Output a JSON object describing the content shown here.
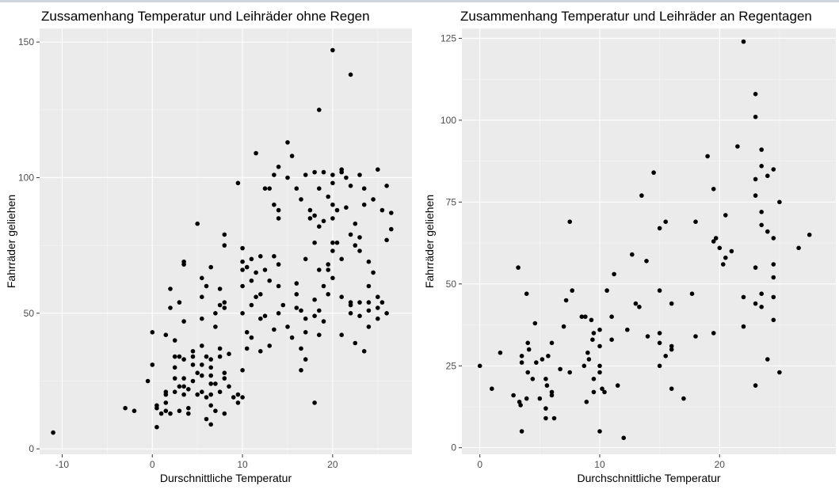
{
  "chart_data": [
    {
      "type": "scatter",
      "title": "Zussamenhang Temperatur und Leihräder ohne Regen",
      "xlabel": "Durschnittliche Temperatur",
      "ylabel": "Fahrräder geliehen",
      "xlim": [
        -12.5,
        28.8
      ],
      "ylim": [
        -2,
        155
      ],
      "x_ticks": [
        -10,
        0,
        10,
        20
      ],
      "y_ticks": [
        0,
        50,
        100,
        150
      ],
      "grid": true,
      "point_color": "#000000",
      "panel_color": "#ebebeb",
      "points": [
        [
          -11,
          6
        ],
        [
          -3,
          15
        ],
        [
          -2,
          14
        ],
        [
          -0.5,
          25
        ],
        [
          0,
          43
        ],
        [
          0,
          31
        ],
        [
          0.5,
          16
        ],
        [
          0.5,
          15
        ],
        [
          0.5,
          8
        ],
        [
          1,
          13
        ],
        [
          1.5,
          42
        ],
        [
          1.5,
          21
        ],
        [
          1.5,
          20
        ],
        [
          1.5,
          17
        ],
        [
          1.5,
          14
        ],
        [
          2,
          52
        ],
        [
          2,
          59
        ],
        [
          2,
          13
        ],
        [
          2.5,
          40
        ],
        [
          2.5,
          34
        ],
        [
          2.5,
          30
        ],
        [
          2.5,
          26
        ],
        [
          2.5,
          21
        ],
        [
          3,
          34
        ],
        [
          3,
          23
        ],
        [
          3,
          14
        ],
        [
          3,
          54
        ],
        [
          3.5,
          68
        ],
        [
          3.5,
          69
        ],
        [
          3.5,
          47
        ],
        [
          3.5,
          33
        ],
        [
          3.5,
          26
        ],
        [
          3.5,
          23
        ],
        [
          3.5,
          20
        ],
        [
          4,
          22
        ],
        [
          4,
          15
        ],
        [
          4,
          13
        ],
        [
          4.5,
          36
        ],
        [
          4.5,
          34
        ],
        [
          4.5,
          31
        ],
        [
          4.5,
          25
        ],
        [
          5,
          83
        ],
        [
          5,
          28
        ],
        [
          5,
          20
        ],
        [
          5.5,
          63
        ],
        [
          5.5,
          56
        ],
        [
          5.5,
          48
        ],
        [
          5.5,
          38
        ],
        [
          5.5,
          31
        ],
        [
          5.5,
          27
        ],
        [
          5.5,
          21
        ],
        [
          6,
          60
        ],
        [
          6,
          19
        ],
        [
          6,
          11
        ],
        [
          6,
          34
        ],
        [
          6.5,
          67
        ],
        [
          6.5,
          33
        ],
        [
          6.5,
          30
        ],
        [
          6.5,
          27
        ],
        [
          6.5,
          24
        ],
        [
          6.5,
          20
        ],
        [
          6.5,
          16
        ],
        [
          6.5,
          9
        ],
        [
          7,
          50
        ],
        [
          7,
          45
        ],
        [
          7,
          24
        ],
        [
          7,
          14
        ],
        [
          7.5,
          59
        ],
        [
          7.5,
          53
        ],
        [
          7.5,
          37
        ],
        [
          7.5,
          34
        ],
        [
          7.5,
          21
        ],
        [
          8,
          79
        ],
        [
          8,
          75
        ],
        [
          8,
          54
        ],
        [
          8,
          52
        ],
        [
          8,
          28
        ],
        [
          8,
          26
        ],
        [
          8,
          13
        ],
        [
          8.5,
          35
        ],
        [
          8.5,
          23
        ],
        [
          9,
          19
        ],
        [
          9.5,
          98
        ],
        [
          9.5,
          20
        ],
        [
          9.5,
          17
        ],
        [
          10,
          74
        ],
        [
          10,
          69
        ],
        [
          10,
          66
        ],
        [
          10,
          60
        ],
        [
          10,
          50
        ],
        [
          10,
          29
        ],
        [
          10,
          19
        ],
        [
          10.5,
          43
        ],
        [
          10.5,
          37
        ],
        [
          10.5,
          67
        ],
        [
          11,
          70
        ],
        [
          11,
          62
        ],
        [
          11,
          53
        ],
        [
          11,
          41
        ],
        [
          11.5,
          109
        ],
        [
          11.5,
          65
        ],
        [
          11.5,
          56
        ],
        [
          12,
          71
        ],
        [
          12,
          57
        ],
        [
          12,
          48
        ],
        [
          12,
          36
        ],
        [
          12.5,
          96
        ],
        [
          12.5,
          66
        ],
        [
          12.5,
          49
        ],
        [
          13,
          96
        ],
        [
          13,
          38
        ],
        [
          13,
          62
        ],
        [
          13.5,
          101
        ],
        [
          13.5,
          90
        ],
        [
          13.5,
          71
        ],
        [
          13.5,
          44
        ],
        [
          14,
          104
        ],
        [
          14,
          88
        ],
        [
          14,
          85
        ],
        [
          14,
          68
        ],
        [
          14,
          60
        ],
        [
          14,
          50
        ],
        [
          14.5,
          53
        ],
        [
          15,
          100
        ],
        [
          15,
          113
        ],
        [
          15,
          45
        ],
        [
          15.5,
          108
        ],
        [
          15.5,
          41
        ],
        [
          16,
          96
        ],
        [
          16,
          61
        ],
        [
          16,
          52
        ],
        [
          16,
          57
        ],
        [
          16.5,
          92
        ],
        [
          16.5,
          51
        ],
        [
          16.5,
          29
        ],
        [
          16.5,
          37
        ],
        [
          17,
          101
        ],
        [
          17,
          70
        ],
        [
          17,
          48
        ],
        [
          17,
          43
        ],
        [
          17,
          33
        ],
        [
          17.5,
          88
        ],
        [
          17.5,
          85
        ],
        [
          18,
          102
        ],
        [
          18,
          86
        ],
        [
          18,
          76
        ],
        [
          18,
          55
        ],
        [
          18,
          49
        ],
        [
          18,
          17
        ],
        [
          18.5,
          125
        ],
        [
          18.5,
          96
        ],
        [
          18.5,
          82
        ],
        [
          18.5,
          66
        ],
        [
          18.5,
          51
        ],
        [
          18.5,
          42
        ],
        [
          19,
          102
        ],
        [
          19,
          84
        ],
        [
          19,
          60
        ],
        [
          19,
          47
        ],
        [
          19.5,
          93
        ],
        [
          19.5,
          68
        ],
        [
          19.5,
          66
        ],
        [
          19.5,
          57
        ],
        [
          20,
          147
        ],
        [
          20,
          101
        ],
        [
          20,
          98
        ],
        [
          20,
          90
        ],
        [
          20,
          85
        ],
        [
          20,
          76
        ],
        [
          20,
          73
        ],
        [
          20,
          63
        ],
        [
          20.5,
          88
        ],
        [
          20.5,
          76
        ],
        [
          21,
          103
        ],
        [
          21,
          102
        ],
        [
          21,
          70
        ],
        [
          21,
          56
        ],
        [
          21,
          42
        ],
        [
          21.5,
          100
        ],
        [
          21.5,
          89
        ],
        [
          22,
          138
        ],
        [
          22,
          97
        ],
        [
          22,
          79
        ],
        [
          22,
          54
        ],
        [
          22,
          53
        ],
        [
          22,
          50
        ],
        [
          22.5,
          83
        ],
        [
          22.5,
          75
        ],
        [
          22.5,
          39
        ],
        [
          23,
          101
        ],
        [
          23,
          78
        ],
        [
          23,
          73
        ],
        [
          23,
          54
        ],
        [
          23,
          49
        ],
        [
          23.5,
          96
        ],
        [
          23.5,
          90
        ],
        [
          23.5,
          36
        ],
        [
          24,
          60
        ],
        [
          24,
          54
        ],
        [
          24,
          51
        ],
        [
          24,
          45
        ],
        [
          24,
          69
        ],
        [
          24.5,
          92
        ],
        [
          24.5,
          65
        ],
        [
          25,
          103
        ],
        [
          25,
          56
        ],
        [
          25,
          52
        ],
        [
          25,
          48
        ],
        [
          25.5,
          88
        ],
        [
          25.5,
          54
        ],
        [
          26,
          97
        ],
        [
          26,
          77
        ],
        [
          26,
          50
        ],
        [
          26.5,
          87
        ],
        [
          26.5,
          81
        ]
      ]
    },
    {
      "type": "scatter",
      "title": "Zusammenhang Temperatur und Leihräder an Regentagen",
      "xlabel": "Durchschnittliche Temperatur",
      "ylabel": "Fahrräder geliehen",
      "xlim": [
        -1.5,
        29.7
      ],
      "ylim": [
        -2,
        128
      ],
      "x_ticks": [
        0,
        10,
        20
      ],
      "y_ticks": [
        0,
        25,
        50,
        75,
        100,
        125
      ],
      "grid": true,
      "point_color": "#000000",
      "panel_color": "#ebebeb",
      "points": [
        [
          0,
          25
        ],
        [
          1,
          18
        ],
        [
          1.7,
          29
        ],
        [
          2.8,
          16
        ],
        [
          3.2,
          55
        ],
        [
          3.3,
          14
        ],
        [
          3.4,
          13
        ],
        [
          3.5,
          5
        ],
        [
          3.5,
          28
        ],
        [
          3.5,
          26
        ],
        [
          3.9,
          15
        ],
        [
          3.9,
          47
        ],
        [
          4,
          23
        ],
        [
          4,
          32
        ],
        [
          4.1,
          30
        ],
        [
          4.4,
          21
        ],
        [
          4.6,
          38
        ],
        [
          4.7,
          26
        ],
        [
          5,
          15
        ],
        [
          5.2,
          27
        ],
        [
          5.5,
          21
        ],
        [
          5.5,
          12
        ],
        [
          5.5,
          9
        ],
        [
          5.6,
          19
        ],
        [
          5.7,
          28
        ],
        [
          6,
          32
        ],
        [
          6,
          17
        ],
        [
          6,
          16
        ],
        [
          6.2,
          9
        ],
        [
          6.7,
          24
        ],
        [
          7,
          37
        ],
        [
          7.2,
          45
        ],
        [
          7.5,
          69
        ],
        [
          7.5,
          23
        ],
        [
          7.7,
          48
        ],
        [
          8.5,
          40
        ],
        [
          8.7,
          25
        ],
        [
          8.8,
          40
        ],
        [
          8.9,
          14
        ],
        [
          9,
          29
        ],
        [
          9.1,
          27
        ],
        [
          9.3,
          39
        ],
        [
          9.4,
          33
        ],
        [
          9.5,
          35
        ],
        [
          9.5,
          21
        ],
        [
          9.5,
          17
        ],
        [
          10,
          5
        ],
        [
          10,
          23
        ],
        [
          10,
          36
        ],
        [
          10,
          31
        ],
        [
          10,
          25
        ],
        [
          10.2,
          18
        ],
        [
          10.4,
          17
        ],
        [
          10.6,
          48
        ],
        [
          11,
          33
        ],
        [
          11,
          40
        ],
        [
          11.2,
          53
        ],
        [
          11.5,
          19
        ],
        [
          12,
          3
        ],
        [
          12.3,
          36
        ],
        [
          12.7,
          59
        ],
        [
          13,
          44
        ],
        [
          13.3,
          43
        ],
        [
          13.5,
          77
        ],
        [
          13.9,
          57
        ],
        [
          14,
          34
        ],
        [
          14.5,
          84
        ],
        [
          15,
          67
        ],
        [
          15,
          48
        ],
        [
          15,
          35
        ],
        [
          15,
          32
        ],
        [
          15,
          25
        ],
        [
          15.5,
          69
        ],
        [
          15.5,
          28
        ],
        [
          16,
          44
        ],
        [
          16,
          31
        ],
        [
          16,
          18
        ],
        [
          16,
          30
        ],
        [
          17,
          15
        ],
        [
          17.7,
          47
        ],
        [
          18,
          34
        ],
        [
          18,
          69
        ],
        [
          19,
          89
        ],
        [
          19.5,
          79
        ],
        [
          19.5,
          63
        ],
        [
          19.5,
          35
        ],
        [
          19.7,
          64
        ],
        [
          20,
          61
        ],
        [
          20.3,
          56
        ],
        [
          20.5,
          58
        ],
        [
          20.5,
          71
        ],
        [
          21,
          60
        ],
        [
          21.5,
          92
        ],
        [
          22,
          124
        ],
        [
          22,
          46
        ],
        [
          22,
          37
        ],
        [
          23,
          108
        ],
        [
          23,
          101
        ],
        [
          23,
          82
        ],
        [
          23,
          77
        ],
        [
          23,
          55
        ],
        [
          23,
          44
        ],
        [
          23,
          19
        ],
        [
          23.5,
          91
        ],
        [
          23.5,
          86
        ],
        [
          23.5,
          72
        ],
        [
          23.5,
          68
        ],
        [
          23.5,
          47
        ],
        [
          23.5,
          43
        ],
        [
          24,
          83
        ],
        [
          24,
          66
        ],
        [
          24,
          27
        ],
        [
          24.5,
          85
        ],
        [
          24.5,
          64
        ],
        [
          24.5,
          56
        ],
        [
          24.5,
          52
        ],
        [
          24.5,
          46
        ],
        [
          24.5,
          39
        ],
        [
          25,
          75
        ],
        [
          25,
          23
        ],
        [
          26.6,
          61
        ],
        [
          27.5,
          65
        ]
      ]
    }
  ]
}
